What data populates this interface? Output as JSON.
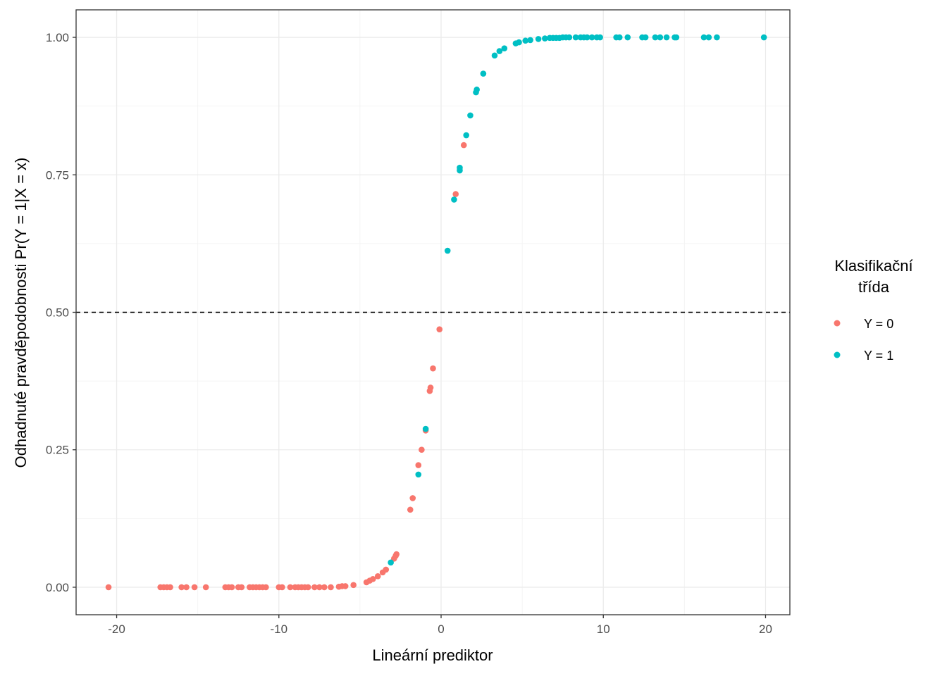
{
  "chart_data": {
    "type": "scatter",
    "xlabel": "Lineární prediktor",
    "ylabel": "Odhadnuté pravděpodobnosti Pr(Y = 1|X = x)",
    "xlim": [
      -22.5,
      21.5
    ],
    "ylim": [
      -0.05,
      1.05
    ],
    "x_ticks": [
      -20,
      -10,
      0,
      10,
      20
    ],
    "x_tick_labels": [
      "-20",
      "-10",
      "0",
      "10",
      "20"
    ],
    "y_ticks": [
      0,
      0.25,
      0.5,
      0.75,
      1
    ],
    "y_tick_labels": [
      "0.00",
      "0.25",
      "0.50",
      "0.75",
      "1.00"
    ],
    "grid": true,
    "reference_line": {
      "y": 0.5,
      "style": "dashed"
    },
    "legend": {
      "title_lines": [
        "Klasifikační",
        "třída"
      ],
      "placement": "right"
    },
    "series": [
      {
        "name": "Y = 0",
        "color": "#F8766D",
        "points": [
          {
            "x": -20.5,
            "y": 0.0
          },
          {
            "x": -17.3,
            "y": 0.0
          },
          {
            "x": -17.1,
            "y": 0.0
          },
          {
            "x": -16.9,
            "y": 0.0
          },
          {
            "x": -16.7,
            "y": 0.0
          },
          {
            "x": -16.0,
            "y": 0.0
          },
          {
            "x": -15.7,
            "y": 0.0
          },
          {
            "x": -15.2,
            "y": 0.0
          },
          {
            "x": -14.5,
            "y": 0.0
          },
          {
            "x": -13.3,
            "y": 0.0
          },
          {
            "x": -13.1,
            "y": 0.0
          },
          {
            "x": -12.9,
            "y": 0.0
          },
          {
            "x": -12.5,
            "y": 0.0
          },
          {
            "x": -12.3,
            "y": 0.0
          },
          {
            "x": -11.8,
            "y": 0.0
          },
          {
            "x": -11.6,
            "y": 0.0
          },
          {
            "x": -11.4,
            "y": 0.0
          },
          {
            "x": -11.2,
            "y": 0.0
          },
          {
            "x": -11.0,
            "y": 0.0
          },
          {
            "x": -10.8,
            "y": 0.0
          },
          {
            "x": -10.0,
            "y": 0.0
          },
          {
            "x": -9.8,
            "y": 0.0
          },
          {
            "x": -9.3,
            "y": 0.0
          },
          {
            "x": -9.0,
            "y": 0.0
          },
          {
            "x": -8.8,
            "y": 0.0
          },
          {
            "x": -8.6,
            "y": 0.0
          },
          {
            "x": -8.4,
            "y": 0.0
          },
          {
            "x": -8.2,
            "y": 0.0
          },
          {
            "x": -7.8,
            "y": 0.0
          },
          {
            "x": -7.5,
            "y": 0.0
          },
          {
            "x": -7.2,
            "y": 0.0
          },
          {
            "x": -6.8,
            "y": 0.0
          },
          {
            "x": -6.3,
            "y": 0.001
          },
          {
            "x": -6.1,
            "y": 0.002
          },
          {
            "x": -5.9,
            "y": 0.002
          },
          {
            "x": -5.4,
            "y": 0.004
          },
          {
            "x": -4.6,
            "y": 0.009
          },
          {
            "x": -4.4,
            "y": 0.012
          },
          {
            "x": -4.2,
            "y": 0.015
          },
          {
            "x": -3.9,
            "y": 0.02
          },
          {
            "x": -3.6,
            "y": 0.027
          },
          {
            "x": -3.4,
            "y": 0.032
          },
          {
            "x": -2.9,
            "y": 0.052
          },
          {
            "x": -2.8,
            "y": 0.057
          },
          {
            "x": -2.75,
            "y": 0.06
          },
          {
            "x": -1.9,
            "y": 0.141
          },
          {
            "x": -1.75,
            "y": 0.162
          },
          {
            "x": -1.4,
            "y": 0.222
          },
          {
            "x": -1.2,
            "y": 0.25
          },
          {
            "x": -0.95,
            "y": 0.285
          },
          {
            "x": -0.7,
            "y": 0.357
          },
          {
            "x": -0.65,
            "y": 0.363
          },
          {
            "x": -0.5,
            "y": 0.398
          },
          {
            "x": -0.1,
            "y": 0.469
          },
          {
            "x": 0.9,
            "y": 0.715
          },
          {
            "x": 1.4,
            "y": 0.804
          }
        ]
      },
      {
        "name": "Y = 1",
        "color": "#00BFC4",
        "points": [
          {
            "x": -3.1,
            "y": 0.045
          },
          {
            "x": -1.4,
            "y": 0.205
          },
          {
            "x": -0.95,
            "y": 0.288
          },
          {
            "x": 0.4,
            "y": 0.612
          },
          {
            "x": 0.8,
            "y": 0.705
          },
          {
            "x": 1.15,
            "y": 0.758
          },
          {
            "x": 1.15,
            "y": 0.763
          },
          {
            "x": 1.55,
            "y": 0.822
          },
          {
            "x": 1.8,
            "y": 0.858
          },
          {
            "x": 2.15,
            "y": 0.9
          },
          {
            "x": 2.2,
            "y": 0.905
          },
          {
            "x": 2.6,
            "y": 0.934
          },
          {
            "x": 3.3,
            "y": 0.967
          },
          {
            "x": 3.6,
            "y": 0.975
          },
          {
            "x": 3.9,
            "y": 0.98
          },
          {
            "x": 4.6,
            "y": 0.989
          },
          {
            "x": 4.8,
            "y": 0.991
          },
          {
            "x": 5.2,
            "y": 0.994
          },
          {
            "x": 5.5,
            "y": 0.995
          },
          {
            "x": 6.0,
            "y": 0.997
          },
          {
            "x": 6.4,
            "y": 0.998
          },
          {
            "x": 6.7,
            "y": 0.999
          },
          {
            "x": 6.9,
            "y": 0.999
          },
          {
            "x": 7.1,
            "y": 0.999
          },
          {
            "x": 7.3,
            "y": 0.999
          },
          {
            "x": 7.5,
            "y": 1.0
          },
          {
            "x": 7.7,
            "y": 1.0
          },
          {
            "x": 7.9,
            "y": 1.0
          },
          {
            "x": 8.3,
            "y": 1.0
          },
          {
            "x": 8.6,
            "y": 1.0
          },
          {
            "x": 8.8,
            "y": 1.0
          },
          {
            "x": 9.0,
            "y": 1.0
          },
          {
            "x": 9.3,
            "y": 1.0
          },
          {
            "x": 9.6,
            "y": 1.0
          },
          {
            "x": 9.8,
            "y": 1.0
          },
          {
            "x": 10.8,
            "y": 1.0
          },
          {
            "x": 11.0,
            "y": 1.0
          },
          {
            "x": 11.5,
            "y": 1.0
          },
          {
            "x": 12.4,
            "y": 1.0
          },
          {
            "x": 12.6,
            "y": 1.0
          },
          {
            "x": 13.2,
            "y": 1.0
          },
          {
            "x": 13.5,
            "y": 1.0
          },
          {
            "x": 13.9,
            "y": 1.0
          },
          {
            "x": 14.4,
            "y": 1.0
          },
          {
            "x": 14.5,
            "y": 1.0
          },
          {
            "x": 16.2,
            "y": 1.0
          },
          {
            "x": 16.5,
            "y": 1.0
          },
          {
            "x": 17.0,
            "y": 1.0
          },
          {
            "x": 19.9,
            "y": 1.0
          }
        ]
      }
    ]
  }
}
